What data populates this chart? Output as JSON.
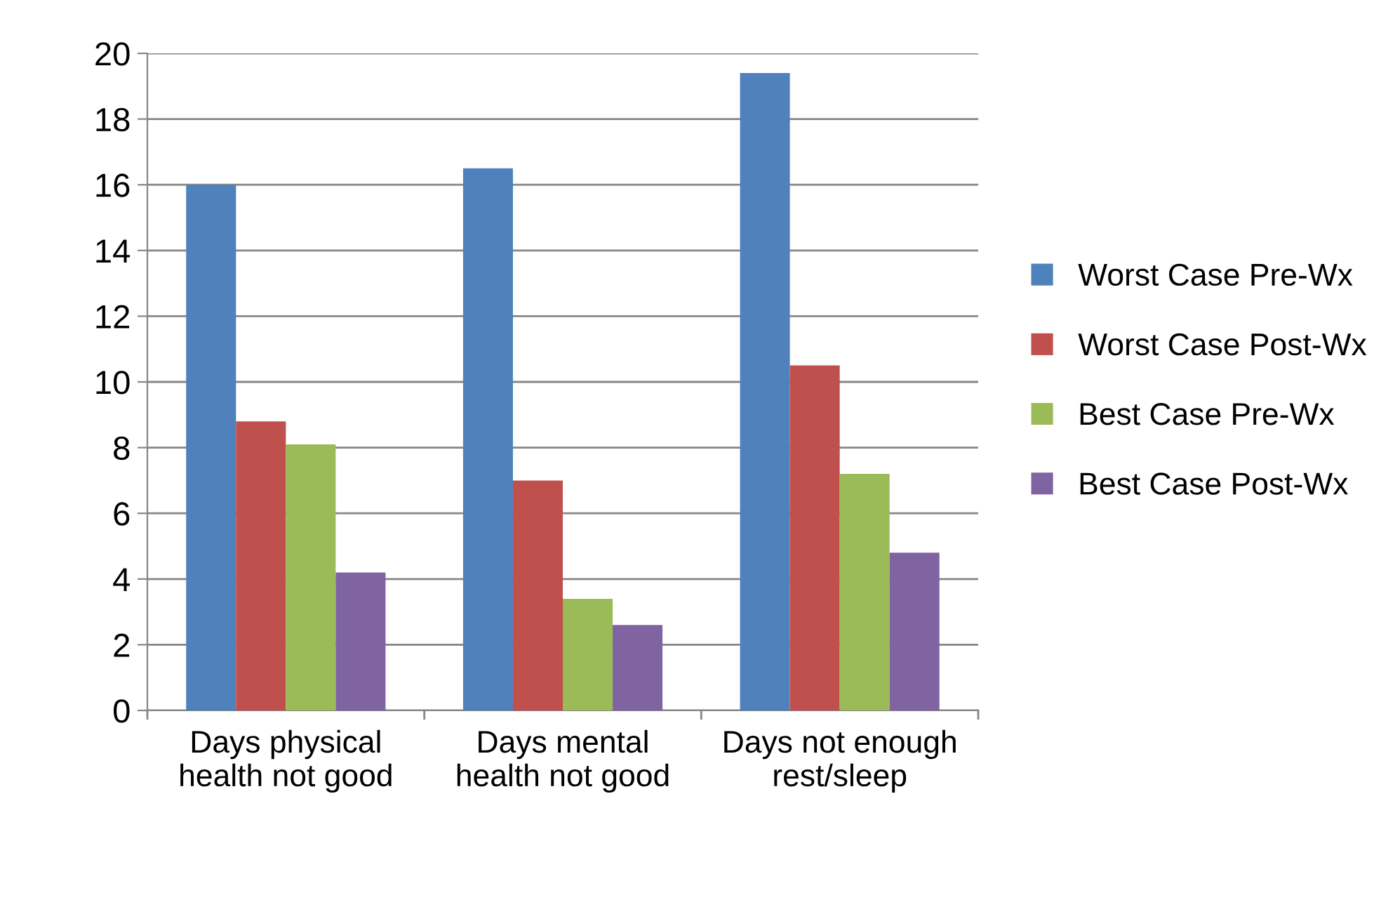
{
  "chart_data": {
    "type": "bar",
    "categories": [
      "Days physical\nhealth not good",
      "Days mental\nhealth not good",
      "Days not enough\nrest/sleep"
    ],
    "series": [
      {
        "name": "Worst Case Pre-Wx",
        "color": "#4f81bd",
        "values": [
          16.0,
          16.5,
          19.4
        ]
      },
      {
        "name": "Worst Case Post-Wx",
        "color": "#c0504d",
        "values": [
          8.8,
          7.0,
          10.5
        ]
      },
      {
        "name": "Best Case Pre-Wx",
        "color": "#9bbb59",
        "values": [
          8.1,
          3.4,
          7.2
        ]
      },
      {
        "name": "Best Case Post-Wx",
        "color": "#8064a2",
        "values": [
          4.2,
          2.6,
          4.8
        ]
      }
    ],
    "ylim": [
      0,
      20
    ],
    "yticks": [
      0,
      2,
      4,
      6,
      8,
      10,
      12,
      14,
      16,
      18,
      20
    ],
    "grid": "y",
    "legend": "right"
  }
}
